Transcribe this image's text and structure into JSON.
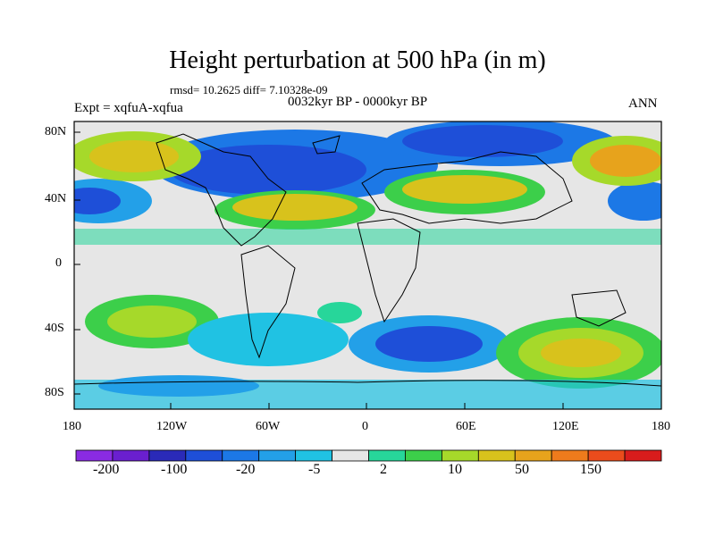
{
  "title": "Height perturbation at 500 hPa (in m)",
  "stats": "rmsd= 10.2625 diff= 7.10328e-09",
  "experiment": "Expt = xqfuA-xqfua",
  "period": "0032kyr BP - 0000kyr BP",
  "season": "ANN",
  "lat_labels": [
    "80N",
    "40N",
    "0",
    "40S",
    "80S"
  ],
  "lon_labels": [
    "180",
    "120W",
    "60W",
    "0",
    "60E",
    "120E",
    "180"
  ],
  "colorbar": {
    "colors": [
      "#8a2be2",
      "#6a1fcf",
      "#2a2ab8",
      "#1e4fd8",
      "#1c78e6",
      "#23a0e8",
      "#20c2e3",
      "#e6e6e6",
      "#27d69a",
      "#3ccf4a",
      "#a6d92a",
      "#d8c21c",
      "#e7a31c",
      "#ee7b1c",
      "#ea4c1c",
      "#d81c1c"
    ],
    "labels": [
      "-200",
      "-100",
      "-20",
      "-5",
      "2",
      "10",
      "50",
      "150"
    ]
  }
}
